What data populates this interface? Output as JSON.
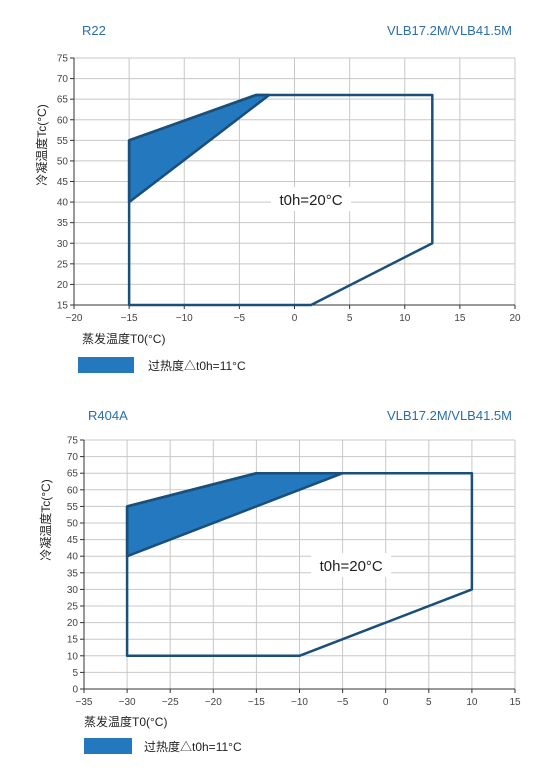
{
  "chart_data": [
    {
      "type": "area",
      "refrigerant": "R22",
      "model": "VLB17.2M/VLB41.5M",
      "xlabel": "蒸发温度T0(°C)",
      "ylabel": "冷凝温度Tc(°C)",
      "xlim": [
        -20,
        20
      ],
      "ylim": [
        15,
        75
      ],
      "xticks": [
        -20,
        -15,
        -10,
        -5,
        0,
        5,
        10,
        15,
        20
      ],
      "yticks": [
        15,
        20,
        25,
        30,
        35,
        40,
        45,
        50,
        55,
        60,
        65,
        70,
        75
      ],
      "grid": true,
      "annotation": {
        "text": "t0h=20°C",
        "x": 1.5,
        "y": 40.5
      },
      "envelope": [
        {
          "x": -15,
          "y": 15
        },
        {
          "x": 1.5,
          "y": 15
        },
        {
          "x": 12.5,
          "y": 30
        },
        {
          "x": 12.5,
          "y": 66
        },
        {
          "x": -3.5,
          "y": 66
        },
        {
          "x": -15,
          "y": 55
        }
      ],
      "superheat_region": [
        {
          "x": -15,
          "y": 55
        },
        {
          "x": -3.5,
          "y": 66
        },
        {
          "x": -2.3,
          "y": 66
        },
        {
          "x": -15,
          "y": 40
        }
      ],
      "legend": {
        "label": "过热度△t0h=11°C",
        "color": "#2378be"
      }
    },
    {
      "type": "area",
      "refrigerant": "R404A",
      "model": "VLB17.2M/VLB41.5M",
      "xlabel": "蒸发温度T0(°C)",
      "ylabel": "冷凝温度Tc(°C)",
      "xlim": [
        -35,
        15
      ],
      "ylim": [
        0,
        75
      ],
      "xticks": [
        -35,
        -30,
        -25,
        -20,
        -15,
        -10,
        -5,
        0,
        5,
        10,
        15
      ],
      "yticks": [
        0,
        5,
        10,
        15,
        20,
        25,
        30,
        35,
        40,
        45,
        50,
        55,
        60,
        65,
        70,
        75
      ],
      "grid": true,
      "annotation": {
        "text": "t0h=20°C",
        "x": -4,
        "y": 37
      },
      "envelope": [
        {
          "x": -30,
          "y": 10
        },
        {
          "x": -10,
          "y": 10
        },
        {
          "x": 10,
          "y": 30
        },
        {
          "x": 10,
          "y": 65
        },
        {
          "x": -15,
          "y": 65
        },
        {
          "x": -30,
          "y": 55
        }
      ],
      "superheat_region": [
        {
          "x": -30,
          "y": 55
        },
        {
          "x": -15,
          "y": 65
        },
        {
          "x": -5,
          "y": 65
        },
        {
          "x": -30,
          "y": 40
        }
      ],
      "legend": {
        "label": "过热度△t0h=11°C",
        "color": "#2378be"
      }
    }
  ],
  "colors": {
    "line": "#1a4f7a",
    "fill": "#2378be",
    "grid": "#c8c8c8",
    "title": "#2b6ea8"
  }
}
